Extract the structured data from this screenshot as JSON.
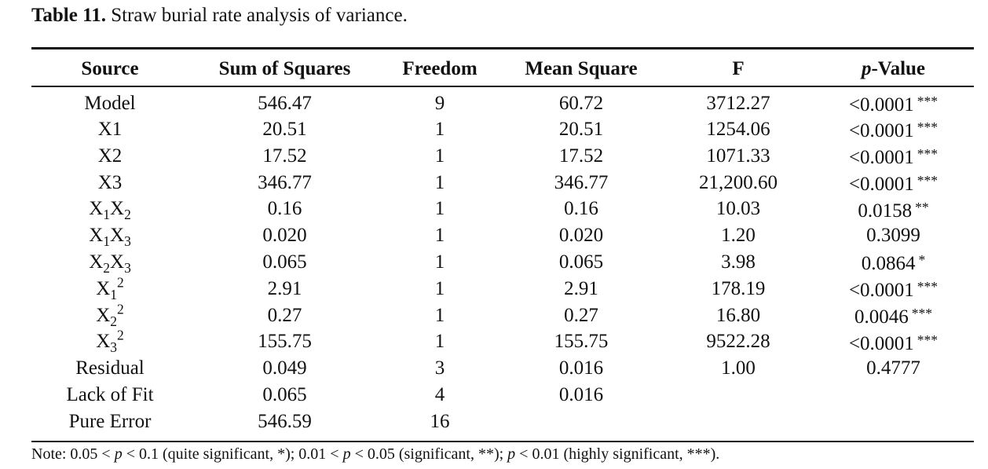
{
  "caption": {
    "label": "Table 11.",
    "text": " Straw burial rate analysis of variance."
  },
  "headers": [
    "Source",
    "Sum of Squares",
    "Freedom",
    "Mean Square",
    "F",
    "p",
    "-Value"
  ],
  "rows": [
    {
      "source": [
        [
          "X",
          ""
        ]
      ],
      "source_text": "Model",
      "ss": "546.47",
      "df": "9",
      "ms": "60.72",
      "f": "3712.27",
      "p": "<0.0001",
      "sig": "***"
    },
    {
      "source": [
        [
          "X1",
          ""
        ]
      ],
      "source_text": "X1",
      "ss": "20.51",
      "df": "1",
      "ms": "20.51",
      "f": "1254.06",
      "p": "<0.0001",
      "sig": "***"
    },
    {
      "source": [
        [
          "X2",
          ""
        ]
      ],
      "source_text": "X2",
      "ss": "17.52",
      "df": "1",
      "ms": "17.52",
      "f": "1071.33",
      "p": "<0.0001",
      "sig": "***"
    },
    {
      "source": [
        [
          "X3",
          ""
        ]
      ],
      "source_text": "X3",
      "ss": "346.77",
      "df": "1",
      "ms": "346.77",
      "f": "21,200.60",
      "p": "<0.0001",
      "sig": "***"
    },
    {
      "source": [
        [
          "X",
          "1"
        ],
        [
          "X",
          "2"
        ]
      ],
      "ss": "0.16",
      "df": "1",
      "ms": "0.16",
      "f": "10.03",
      "p": "0.0158",
      "sig": "**"
    },
    {
      "source": [
        [
          "X",
          "1"
        ],
        [
          "X",
          "3"
        ]
      ],
      "ss": "0.020",
      "df": "1",
      "ms": "0.020",
      "f": "1.20",
      "p": "0.3099",
      "sig": ""
    },
    {
      "source": [
        [
          "X",
          "2"
        ],
        [
          "X",
          "3"
        ]
      ],
      "ss": "0.065",
      "df": "1",
      "ms": "0.065",
      "f": "3.98",
      "p": "0.0864",
      "sig": "*"
    },
    {
      "source": [
        [
          "X",
          "1",
          "2"
        ]
      ],
      "ss": "2.91",
      "df": "1",
      "ms": "2.91",
      "f": "178.19",
      "p": "<0.0001",
      "sig": "***"
    },
    {
      "source": [
        [
          "X",
          "2",
          "2"
        ]
      ],
      "ss": "0.27",
      "df": "1",
      "ms": "0.27",
      "f": "16.80",
      "p": "0.0046",
      "sig": "***"
    },
    {
      "source": [
        [
          "X",
          "3",
          "2"
        ]
      ],
      "ss": "155.75",
      "df": "1",
      "ms": "155.75",
      "f": "9522.28",
      "p": "<0.0001",
      "sig": "***"
    },
    {
      "source_text": "Residual",
      "ss": "0.049",
      "df": "3",
      "ms": "0.016",
      "f": "1.00",
      "p": "0.4777",
      "sig": ""
    },
    {
      "source_text": "Lack of Fit",
      "ss": "0.065",
      "df": "4",
      "ms": "0.016",
      "f": "",
      "p": "",
      "sig": ""
    },
    {
      "source_text": "Pure Error",
      "ss": "546.59",
      "df": "16",
      "ms": "",
      "f": "",
      "p": "",
      "sig": ""
    }
  ],
  "note": [
    [
      "t",
      "Note: 0.05 < "
    ],
    [
      "i",
      "p"
    ],
    [
      "t",
      " < 0.1 (quite significant, *); 0.01 < "
    ],
    [
      "i",
      "p"
    ],
    [
      "t",
      " < 0.05 (significant, **); "
    ],
    [
      "i",
      "p"
    ],
    [
      "t",
      " < 0.01 (highly significant, ***)."
    ]
  ]
}
